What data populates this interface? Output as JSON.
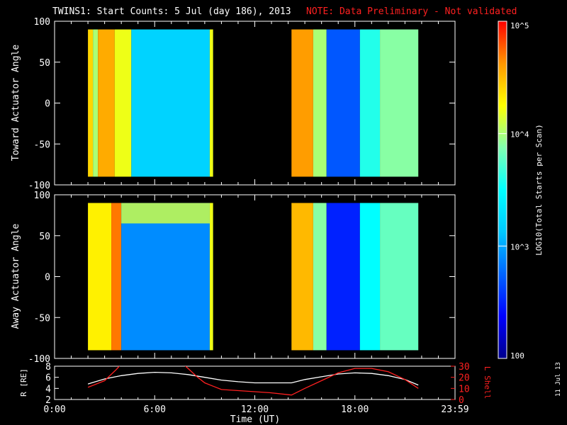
{
  "header": {
    "title": "TWINS1: Start Counts:  5 Jul (day 186), 2013",
    "note": "NOTE: Data Preliminary - Not validated"
  },
  "footer": {
    "xlabel": "Time (UT)",
    "xticks": [
      "0:00",
      "6:00",
      "12:00",
      "18:00",
      "23:59"
    ],
    "datestamp": "11 Jul 13"
  },
  "colorbar": {
    "label": "LOG10(Total Starts per Scan)",
    "ticks": [
      "10^5",
      "10^4",
      "10^3",
      "100"
    ],
    "range": [
      100,
      100000
    ],
    "scale": "log",
    "colormap": [
      "#00008c",
      "#0000ff",
      "#0064ff",
      "#00c8ff",
      "#00ffff",
      "#80ffb0",
      "#ffff00",
      "#ff9600",
      "#ff0000"
    ]
  },
  "chart_data": [
    {
      "type": "heatmap",
      "ylabel": "Toward Actuator Angle",
      "ylim": [
        -100,
        100
      ],
      "yticks": [
        "100",
        "50",
        "0",
        "-50",
        "-100"
      ],
      "xlim": [
        0,
        24
      ],
      "data_ylim": [
        -90,
        90
      ],
      "data_intervals_hours": [
        [
          2.0,
          9.5
        ],
        [
          14.2,
          21.8
        ]
      ],
      "log_counts_columns": [
        {
          "t0": 2.0,
          "t1": 2.3,
          "v": 4.4
        },
        {
          "t0": 2.3,
          "t1": 2.6,
          "v": 4.0
        },
        {
          "t0": 2.6,
          "t1": 3.6,
          "v": 4.55
        },
        {
          "t0": 3.6,
          "t1": 4.6,
          "v": 4.2
        },
        {
          "t0": 4.6,
          "t1": 9.3,
          "v": 3.2
        },
        {
          "t0": 9.3,
          "t1": 9.5,
          "v": 4.2
        },
        {
          "t0": 14.2,
          "t1": 15.5,
          "v": 4.6
        },
        {
          "t0": 15.5,
          "t1": 16.3,
          "v": 4.0
        },
        {
          "t0": 16.3,
          "t1": 18.3,
          "v": 2.7
        },
        {
          "t0": 18.3,
          "t1": 19.5,
          "v": 3.6
        },
        {
          "t0": 19.5,
          "t1": 21.8,
          "v": 3.9
        }
      ]
    },
    {
      "type": "heatmap",
      "ylabel": "Away Actuator Angle",
      "ylim": [
        -100,
        100
      ],
      "yticks": [
        "100",
        "50",
        "0",
        "-50",
        "-100"
      ],
      "xlim": [
        0,
        24
      ],
      "data_ylim": [
        -90,
        90
      ],
      "data_intervals_hours": [
        [
          2.0,
          9.5
        ],
        [
          14.2,
          21.8
        ]
      ],
      "log_counts_columns": [
        {
          "t0": 2.0,
          "t1": 3.4,
          "v": 4.3
        },
        {
          "t0": 3.4,
          "t1": 4.0,
          "v": 4.7
        },
        {
          "t0": 4.0,
          "t1": 9.3,
          "v": 2.9
        },
        {
          "t0": 9.3,
          "t1": 9.5,
          "v": 4.2
        },
        {
          "t0": 14.2,
          "t1": 15.5,
          "v": 4.5
        },
        {
          "t0": 15.5,
          "t1": 16.3,
          "v": 3.9
        },
        {
          "t0": 16.3,
          "t1": 18.3,
          "v": 2.5
        },
        {
          "t0": 18.3,
          "t1": 19.5,
          "v": 3.5
        },
        {
          "t0": 19.5,
          "t1": 21.8,
          "v": 3.8
        }
      ],
      "band_near_top": {
        "t0": 4.0,
        "t1": 9.3,
        "angle_range": [
          65,
          90
        ],
        "v": 4.1
      }
    },
    {
      "type": "line",
      "ylabel": "R [RE]",
      "ylabel_right": "L Shell",
      "ylim": [
        2,
        8
      ],
      "yticks": [
        "8",
        "6",
        "4",
        "2"
      ],
      "ylim_right": [
        0,
        30
      ],
      "yticks_right": [
        "30",
        "20",
        "10",
        "0"
      ],
      "xlim": [
        0,
        24
      ],
      "series": [
        {
          "color": "#ffffff",
          "axis": "left",
          "x": [
            2.0,
            3.0,
            4.0,
            5.0,
            6.0,
            7.0,
            8.0,
            9.0,
            10.0,
            11.0,
            12.0,
            13.0,
            14.2,
            15.0,
            16.0,
            17.0,
            18.0,
            19.0,
            20.0,
            21.0,
            21.8
          ],
          "y": [
            4.8,
            5.7,
            6.3,
            6.7,
            6.9,
            6.8,
            6.5,
            6.0,
            5.5,
            5.2,
            5.0,
            5.0,
            5.0,
            5.6,
            6.1,
            6.6,
            6.8,
            6.7,
            6.3,
            5.6,
            4.6
          ]
        },
        {
          "color": "#ff2020",
          "axis": "right",
          "x": [
            2.0,
            3.0,
            3.7,
            4.0,
            4.3,
            4.6,
            5.0,
            6.0,
            7.0,
            7.7,
            8.0,
            8.5,
            9.0,
            9.5,
            10.0,
            12.0,
            13.0,
            14.2,
            15.0,
            16.0,
            17.0,
            18.0,
            19.0,
            20.0,
            21.0,
            21.8
          ],
          "y": [
            11,
            17,
            27,
            32,
            32,
            32,
            32,
            32,
            32,
            32,
            28,
            21,
            15,
            12,
            9,
            7,
            6,
            4,
            10,
            17,
            24,
            28,
            28,
            25,
            18,
            10
          ]
        }
      ]
    }
  ]
}
